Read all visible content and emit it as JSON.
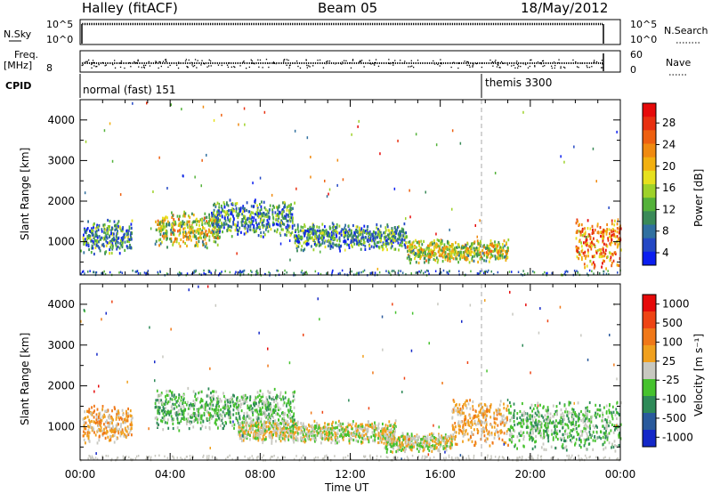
{
  "header": {
    "station": "Halley (fitACF)",
    "beam": "Beam 05",
    "date": "18/May/2012"
  },
  "top_panels": {
    "nsky_label": "N.Sky",
    "nsky_ticks": [
      "10^5",
      "10^0"
    ],
    "nsearch_label": "N.Search",
    "nsearch_ticks": [
      "10^5",
      "10^0"
    ],
    "freq_label": "Freq.",
    "freq_unit": "[MHz]",
    "freq_ticks": [
      "8"
    ],
    "nave_label": "Nave",
    "nave_ticks": [
      "60",
      "0"
    ],
    "cpid_label": "CPID",
    "cpid_modes": [
      {
        "label": "normal (fast) 151",
        "start_hour": 0
      },
      {
        "label": "themis 3300",
        "start_hour": 18
      }
    ]
  },
  "chart_data": [
    {
      "type": "heatmap",
      "xlabel": "",
      "ylabel": "Slant Range [km]",
      "x_range_hours": [
        0,
        24
      ],
      "y_range_km": [
        180,
        4500
      ],
      "yticks": [
        1000,
        2000,
        3000,
        4000
      ],
      "colorbar": {
        "label": "Power [dB]",
        "ticks": [
          "4",
          "8",
          "12",
          "16",
          "20",
          "24",
          "28"
        ],
        "colors": [
          "#0b1ef0",
          "#2448c4",
          "#3070a0",
          "#3a8a58",
          "#54b23a",
          "#9ed22a",
          "#e6e01e",
          "#f2b010",
          "#f08a10",
          "#ee6010",
          "#e83010",
          "#e60a0a"
        ]
      },
      "echo_regions": [
        {
          "hours": [
            0.1,
            2.3
          ],
          "range_km": [
            700,
            1600
          ],
          "level": "strong"
        },
        {
          "hours": [
            3.3,
            6.2
          ],
          "range_km": [
            850,
            1800
          ],
          "level": "moderate"
        },
        {
          "hours": [
            5.8,
            9.5
          ],
          "range_km": [
            1100,
            2100
          ],
          "level": "strong"
        },
        {
          "hours": [
            9.5,
            14.5
          ],
          "range_km": [
            800,
            1500
          ],
          "level": "strong"
        },
        {
          "hours": [
            14.5,
            19.0
          ],
          "range_km": [
            500,
            1100
          ],
          "level": "moderate"
        },
        {
          "hours": [
            22.0,
            24.0
          ],
          "range_km": [
            300,
            1700
          ],
          "level": "weak"
        }
      ]
    },
    {
      "type": "heatmap",
      "xlabel": "Time UT",
      "ylabel": "Slant Range [km]",
      "x_range_hours": [
        0,
        24
      ],
      "y_range_km": [
        180,
        4500
      ],
      "xticks": [
        "00:00",
        "04:00",
        "08:00",
        "12:00",
        "16:00",
        "20:00",
        "00:00"
      ],
      "yticks": [
        1000,
        2000,
        3000,
        4000
      ],
      "colorbar": {
        "label": "Velocity [m s⁻¹]",
        "ticks": [
          "1000",
          "500",
          "100",
          "25",
          "-25",
          "-100",
          "-500",
          "-1000"
        ],
        "colors": [
          "#1428c8",
          "#2a5a9c",
          "#2e8a58",
          "#46c22e",
          "#c8c8c0",
          "#f0a01e",
          "#f07818",
          "#ee4414",
          "#e60a0a"
        ]
      },
      "echo_regions": [
        {
          "hours": [
            0.1,
            2.3
          ],
          "range_km": [
            600,
            1600
          ],
          "dominant": "mixed"
        },
        {
          "hours": [
            3.3,
            9.5
          ],
          "range_km": [
            900,
            2000
          ],
          "dominant": "-100"
        },
        {
          "hours": [
            7.0,
            14.0
          ],
          "range_km": [
            600,
            1200
          ],
          "dominant": "-25"
        },
        {
          "hours": [
            13.5,
            16.5
          ],
          "range_km": [
            400,
            900
          ],
          "dominant": "-25"
        },
        {
          "hours": [
            16.5,
            19.0
          ],
          "range_km": [
            500,
            1800
          ],
          "dominant": "100"
        },
        {
          "hours": [
            19.0,
            24.0
          ],
          "range_km": [
            400,
            1700
          ],
          "dominant": "-100"
        }
      ]
    }
  ]
}
